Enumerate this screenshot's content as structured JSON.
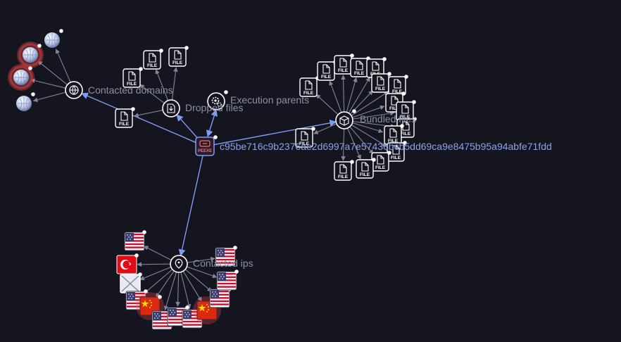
{
  "center": {
    "hash": "c95be716c9b2376ae2d6997a7e57436bcb5dd69ca9e8475b95a94abfe71fdd",
    "badge": "PEEXE"
  },
  "groups": {
    "contacted_domains": "Contacted domains",
    "dropped_files": "Dropped files",
    "execution_parents": "Execution parents",
    "bundled_files": "Bundled files",
    "contacted_ips": "Contacted ips"
  },
  "file_label": "FILE",
  "colors": {
    "background": "#15151f",
    "primary_edge": "#7f9cf5",
    "secondary_edge": "#80869c",
    "highlight": "#ff4a4a"
  },
  "icons": {
    "domains_hub": "globe-link-icon",
    "dropped_hub": "download-file-icon",
    "parents_hub": "gear-icon",
    "bundled_hub": "box-icon",
    "ips_hub": "location-pin-icon",
    "domain_node": "globe-icon",
    "file_node": "file-icon",
    "ip_flags": [
      "us-flag-icon",
      "turkey-flag-icon",
      "unknown-flag-icon",
      "china-flag-icon"
    ]
  }
}
